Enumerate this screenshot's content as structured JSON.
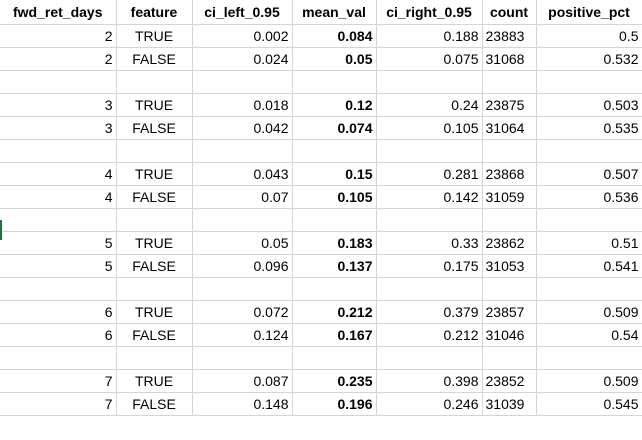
{
  "sheet": {
    "headers": [
      "fwd_ret_days",
      "feature",
      "ci_left_0.95",
      "mean_val",
      "ci_right_0.95",
      "count",
      "positive_pct"
    ],
    "rows": [
      [
        "2",
        "TRUE",
        "0.002",
        "0.084",
        "0.188",
        "23883",
        "0.5"
      ],
      [
        "2",
        "FALSE",
        "0.024",
        "0.05",
        "0.075",
        "31068",
        "0.532"
      ],
      [
        "",
        "",
        "",
        "",
        "",
        "",
        ""
      ],
      [
        "3",
        "TRUE",
        "0.018",
        "0.12",
        "0.24",
        "23875",
        "0.503"
      ],
      [
        "3",
        "FALSE",
        "0.042",
        "0.074",
        "0.105",
        "31064",
        "0.535"
      ],
      [
        "",
        "",
        "",
        "",
        "",
        "",
        ""
      ],
      [
        "4",
        "TRUE",
        "0.043",
        "0.15",
        "0.281",
        "23868",
        "0.507"
      ],
      [
        "4",
        "FALSE",
        "0.07",
        "0.105",
        "0.142",
        "31059",
        "0.536"
      ],
      [
        "",
        "",
        "",
        "",
        "",
        "",
        ""
      ],
      [
        "5",
        "TRUE",
        "0.05",
        "0.183",
        "0.33",
        "23862",
        "0.51"
      ],
      [
        "5",
        "FALSE",
        "0.096",
        "0.137",
        "0.175",
        "31053",
        "0.541"
      ],
      [
        "",
        "",
        "",
        "",
        "",
        "",
        ""
      ],
      [
        "6",
        "TRUE",
        "0.072",
        "0.212",
        "0.379",
        "23857",
        "0.509"
      ],
      [
        "6",
        "FALSE",
        "0.124",
        "0.167",
        "0.212",
        "31046",
        "0.54"
      ],
      [
        "",
        "",
        "",
        "",
        "",
        "",
        ""
      ],
      [
        "7",
        "TRUE",
        "0.087",
        "0.235",
        "0.398",
        "23852",
        "0.509"
      ],
      [
        "7",
        "FALSE",
        "0.148",
        "0.196",
        "0.246",
        "31039",
        "0.545"
      ]
    ]
  }
}
